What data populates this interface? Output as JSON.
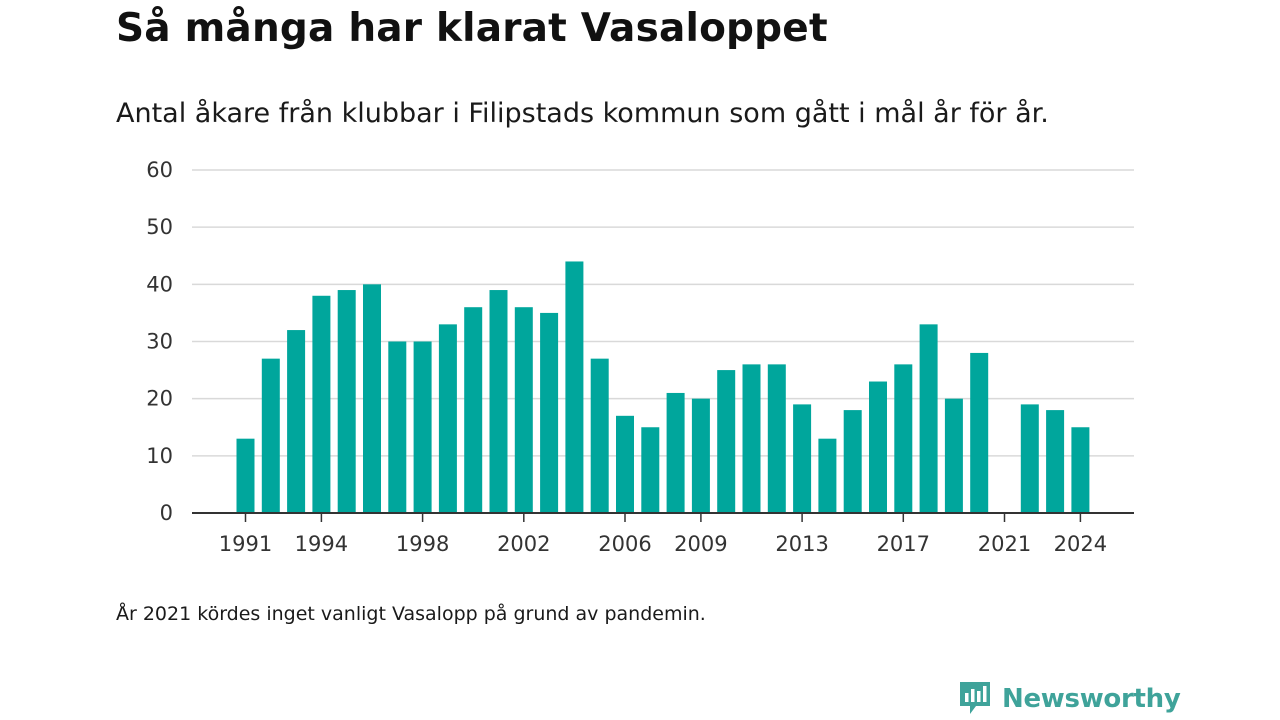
{
  "title": "Så många har klarat Vasaloppet",
  "subtitle": "Antal åkare från klubbar i Filipstads kommun som gått i mål år för år.",
  "footnote": "År 2021 kördes inget vanligt Vasalopp på grund av pandemin.",
  "brand": {
    "name": "Newsworthy",
    "icon": "newsworthy-logo-icon",
    "color": "#3fa39a"
  },
  "chart_data": {
    "type": "bar",
    "bar_color": "#00a69c",
    "x": [
      1991,
      1992,
      1993,
      1994,
      1995,
      1996,
      1997,
      1998,
      1999,
      2000,
      2001,
      2002,
      2003,
      2004,
      2005,
      2006,
      2007,
      2008,
      2009,
      2010,
      2011,
      2012,
      2013,
      2014,
      2015,
      2016,
      2017,
      2018,
      2019,
      2020,
      2021,
      2022,
      2023,
      2024
    ],
    "values": [
      13,
      27,
      32,
      38,
      39,
      40,
      30,
      30,
      33,
      36,
      39,
      36,
      35,
      44,
      27,
      17,
      15,
      21,
      20,
      25,
      26,
      26,
      19,
      13,
      18,
      23,
      26,
      33,
      20,
      28,
      0,
      19,
      18,
      15
    ],
    "xtick_labels": [
      "1991",
      "1994",
      "1998",
      "2002",
      "2006",
      "2009",
      "2013",
      "2017",
      "2021",
      "2024"
    ],
    "yticks": [
      0,
      10,
      20,
      30,
      40,
      50,
      60
    ],
    "ylim": [
      0,
      60
    ],
    "grid": true
  }
}
